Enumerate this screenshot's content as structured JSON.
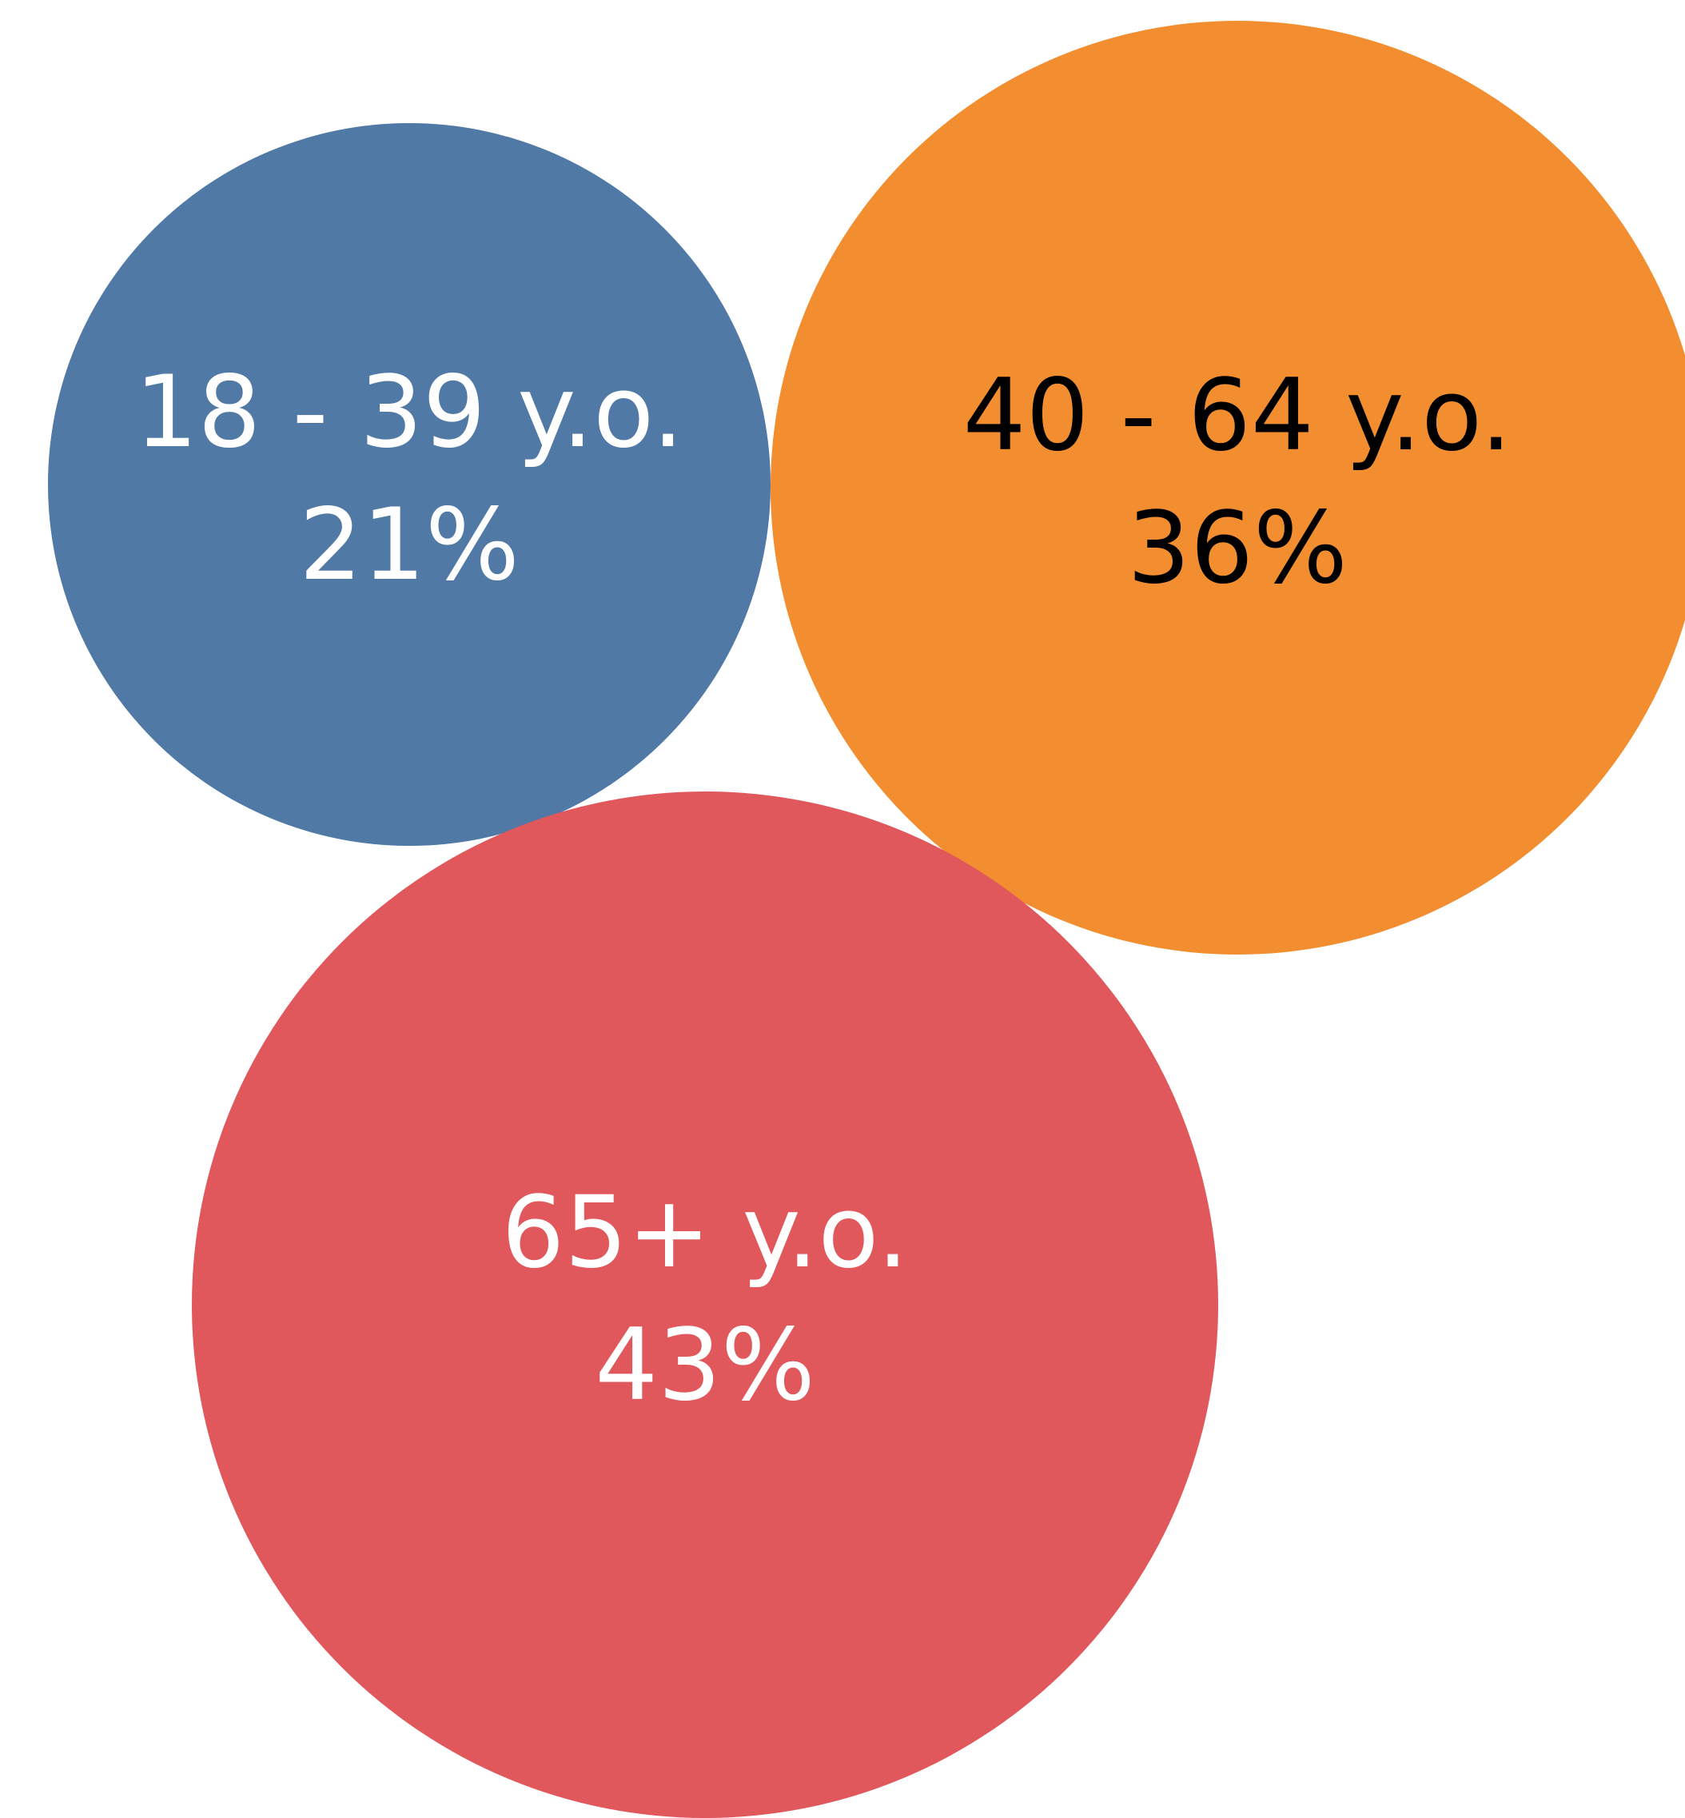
{
  "chart_data": {
    "type": "bubble",
    "title": "",
    "series": [
      {
        "label": "18 - 39 y.o.",
        "value_label": "21%",
        "value": 21,
        "color": "#5079A6",
        "text_color": "#FFFFFF"
      },
      {
        "label": "40 - 64 y.o.",
        "value_label": "36%",
        "value": 36,
        "color": "#F28E2F",
        "text_color": "#000000"
      },
      {
        "label": "65+ y.o.",
        "value_label": "43%",
        "value": 43,
        "color": "#E0575C",
        "text_color": "#FFFFFF"
      }
    ],
    "legend": "none",
    "grid": false
  }
}
